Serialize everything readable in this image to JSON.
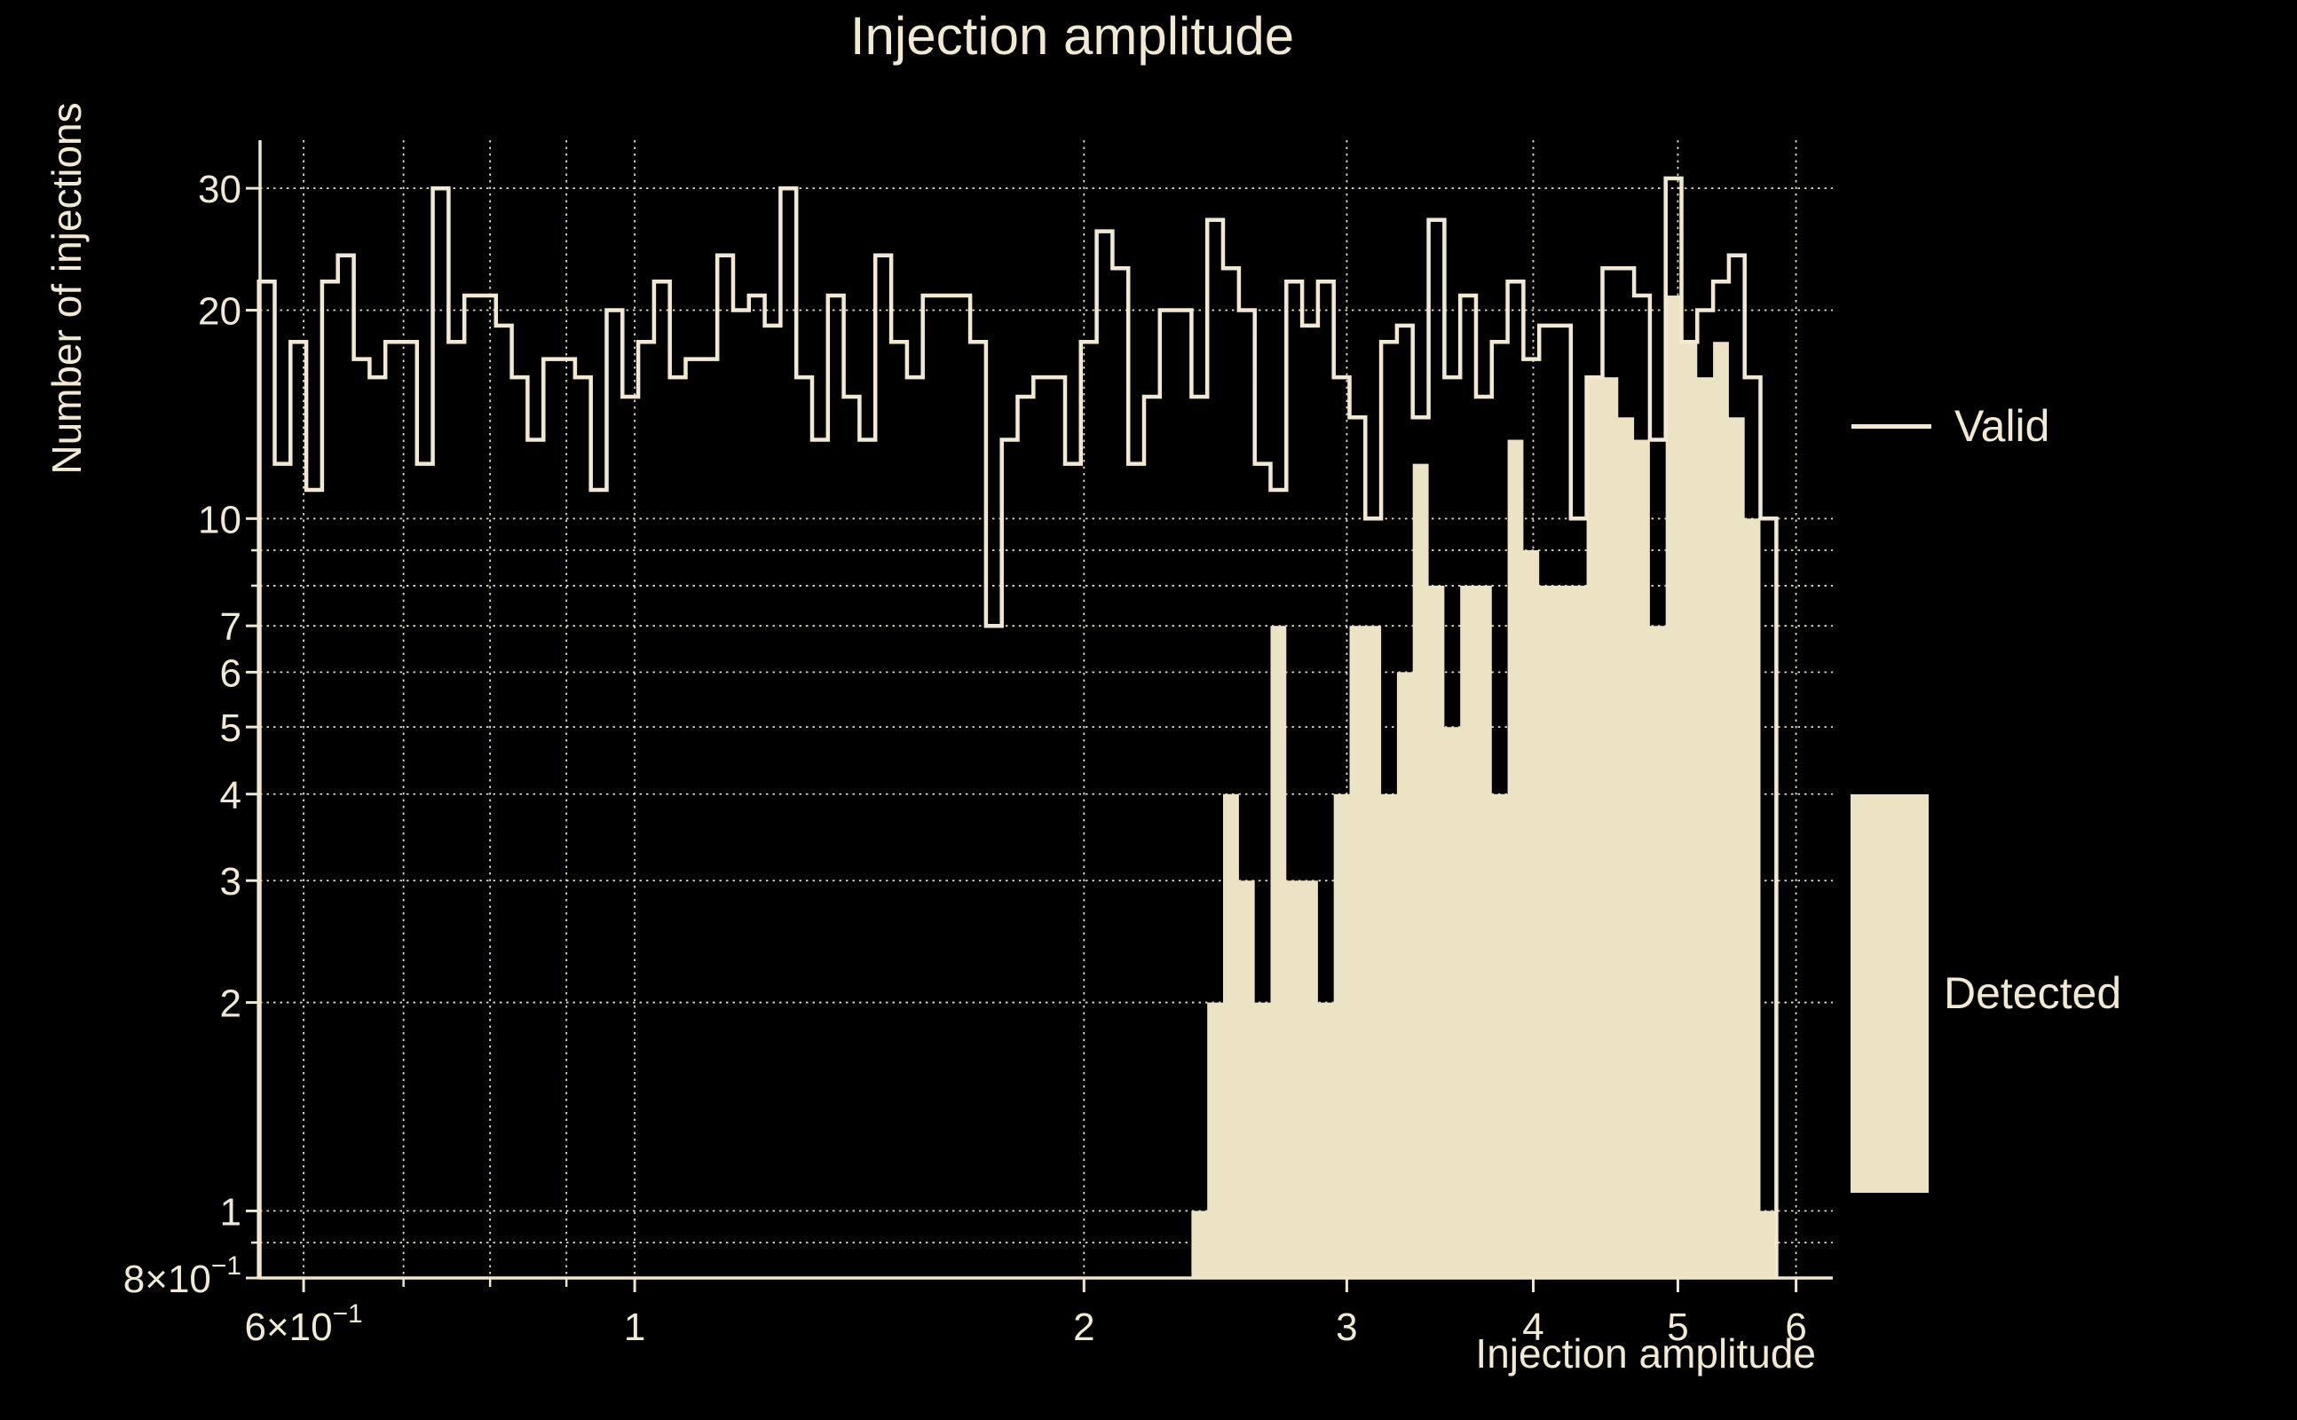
{
  "title": "Injection amplitude",
  "xlabel": "Injection amplitude",
  "ylabel": "Number of injections",
  "legend": {
    "valid_label": "Valid",
    "detected_label": "Detected"
  },
  "colors": {
    "background": "#000000",
    "valid_line": "#f3e9d2",
    "detected_fill": "#ece3c4",
    "text": "#f2e9d2",
    "grid": "#efe6cc",
    "spine": "#f0e6cc"
  },
  "chart_data": {
    "type": "histogram",
    "x_scale": "log",
    "y_scale": "log",
    "xlim": [
      0.561,
      6.35
    ],
    "ylim": [
      0.8,
      35.2
    ],
    "grid": "dotted",
    "legend_position": "right",
    "bin_start": 0.56,
    "bin_stop": 5.82,
    "n_bins": 96,
    "series": [
      {
        "name": "Valid",
        "style": "step",
        "values": [
          22,
          12,
          18,
          11,
          22,
          24,
          17,
          16,
          18,
          18,
          12,
          30,
          18,
          21,
          21,
          19,
          16,
          13,
          17,
          17,
          16,
          11,
          20,
          15,
          18,
          22,
          16,
          17,
          17,
          24,
          20,
          21,
          19,
          30,
          16,
          13,
          21,
          15,
          13,
          24,
          18,
          16,
          21,
          21,
          21,
          18,
          7,
          13,
          15,
          16,
          16,
          12,
          18,
          26,
          23,
          12,
          15,
          20,
          20,
          15,
          27,
          23,
          20,
          12,
          11,
          22,
          19,
          22,
          16,
          14,
          10,
          18,
          19,
          14,
          27,
          16,
          21,
          15,
          18,
          22,
          17,
          19,
          19,
          10,
          16,
          23,
          23,
          21,
          13,
          31,
          18,
          20,
          22,
          24,
          16,
          10
        ]
      },
      {
        "name": "Detected",
        "style": "filled",
        "values": [
          0,
          0,
          0,
          0,
          0,
          0,
          0,
          0,
          0,
          0,
          0,
          0,
          0,
          0,
          0,
          0,
          0,
          0,
          0,
          0,
          0,
          0,
          0,
          0,
          0,
          0,
          0,
          0,
          0,
          0,
          0,
          0,
          0,
          0,
          0,
          0,
          0,
          0,
          0,
          0,
          0,
          0,
          0,
          0,
          0,
          0,
          0,
          0,
          0,
          0,
          0,
          0,
          0,
          0,
          0,
          0,
          0,
          0,
          0,
          1,
          2,
          4,
          3,
          2,
          7,
          3,
          3,
          2,
          4,
          7,
          7,
          4,
          6,
          12,
          8,
          5,
          8,
          8,
          4,
          13,
          9,
          8,
          8,
          8,
          16,
          16,
          14,
          13,
          7,
          21,
          18,
          16,
          18,
          14,
          10,
          1
        ]
      }
    ],
    "x_ticks": {
      "major": [
        {
          "v": 0.6,
          "label": "6×10⁻¹"
        },
        {
          "v": 1,
          "label": "1"
        },
        {
          "v": 2,
          "label": "2"
        },
        {
          "v": 3,
          "label": "3"
        },
        {
          "v": 4,
          "label": "4"
        },
        {
          "v": 5,
          "label": "5"
        },
        {
          "v": 6,
          "label": "6"
        }
      ],
      "minor": [
        0.7,
        0.8,
        0.9
      ]
    },
    "y_ticks": {
      "major": [
        {
          "v": 30,
          "label": "30"
        },
        {
          "v": 20,
          "label": "20"
        },
        {
          "v": 10,
          "label": "10"
        },
        {
          "v": 7,
          "label": "7"
        },
        {
          "v": 6,
          "label": "6"
        },
        {
          "v": 5,
          "label": "5"
        },
        {
          "v": 4,
          "label": "4"
        },
        {
          "v": 3,
          "label": "3"
        },
        {
          "v": 2,
          "label": "2"
        },
        {
          "v": 1,
          "label": "1"
        },
        {
          "v": 0.8,
          "label": "8×10⁻¹"
        }
      ],
      "minor": [
        9,
        8,
        0.9
      ]
    },
    "gridlines": {
      "x": [
        0.6,
        0.7,
        0.8,
        0.9,
        1,
        2,
        3,
        4,
        5,
        6
      ],
      "y": [
        30,
        20,
        10,
        9,
        8,
        7,
        6,
        5,
        4,
        3,
        2,
        1,
        0.9
      ]
    }
  }
}
